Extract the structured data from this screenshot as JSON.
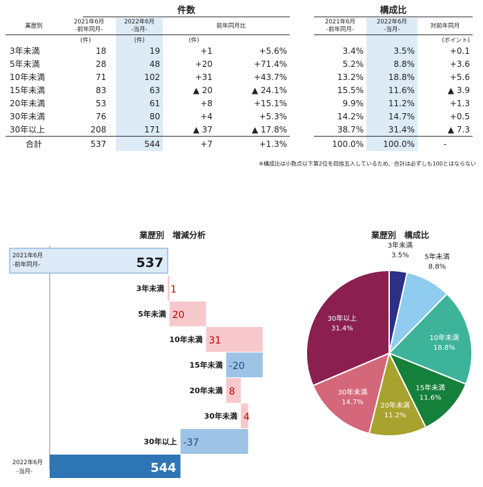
{
  "counts_table": {
    "group_title": "件数",
    "col_category": "業歴別",
    "col_prev": [
      "2021年6月",
      "-前年同月-"
    ],
    "col_curr": [
      "2022年6月",
      "-当月-"
    ],
    "col_yoy": "前年同月比",
    "units": [
      "(件)",
      "(件)",
      "(件)"
    ],
    "rows": [
      {
        "label": "3年未満",
        "prev": "18",
        "curr": "19",
        "diff": "+1",
        "pct": "+5.6%"
      },
      {
        "label": "5年未満",
        "prev": "28",
        "curr": "48",
        "diff": "+20",
        "pct": "+71.4%"
      },
      {
        "label": "10年未満",
        "prev": "71",
        "curr": "102",
        "diff": "+31",
        "pct": "+43.7%"
      },
      {
        "label": "15年未満",
        "prev": "83",
        "curr": "63",
        "diff": "▲ 20",
        "pct": "▲ 24.1%"
      },
      {
        "label": "20年未満",
        "prev": "53",
        "curr": "61",
        "diff": "+8",
        "pct": "+15.1%"
      },
      {
        "label": "30年未満",
        "prev": "76",
        "curr": "80",
        "diff": "+4",
        "pct": "+5.3%"
      },
      {
        "label": "30年以上",
        "prev": "208",
        "curr": "171",
        "diff": "▲ 37",
        "pct": "▲ 17.8%"
      }
    ],
    "total": {
      "label": "合計",
      "prev": "537",
      "curr": "544",
      "diff": "+7",
      "pct": "+1.3%"
    }
  },
  "ratio_table": {
    "group_title": "構成比",
    "col_prev": [
      "2021年6月",
      "-前年同月-"
    ],
    "col_curr": [
      "2022年6月",
      "-当月-"
    ],
    "col_diff": "対前年同月",
    "unit": "(ポイント)",
    "rows": [
      {
        "prev": "3.4%",
        "curr": "3.5%",
        "diff": "+0.1"
      },
      {
        "prev": "5.2%",
        "curr": "8.8%",
        "diff": "+3.6"
      },
      {
        "prev": "13.2%",
        "curr": "18.8%",
        "diff": "+5.6"
      },
      {
        "prev": "15.5%",
        "curr": "11.6%",
        "diff": "▲ 3.9"
      },
      {
        "prev": "9.9%",
        "curr": "11.2%",
        "diff": "+1.3"
      },
      {
        "prev": "14.2%",
        "curr": "14.7%",
        "diff": "+0.5"
      },
      {
        "prev": "38.7%",
        "curr": "31.4%",
        "diff": "▲ 7.3"
      }
    ],
    "total": {
      "prev": "100.0%",
      "curr": "100.0%",
      "diff": "-"
    }
  },
  "note": "※構成比は小数点以下第2位を四捨五入しているため、合計は必ずしも100とはならない",
  "chart_data": [
    {
      "type": "bar",
      "title": "業歴別　増減分析",
      "start": {
        "label_line1": "2021年6月",
        "label_line2": "-前年同月-",
        "value": 537
      },
      "end": {
        "label_line1": "2022年6月",
        "label_line2": "-当月-",
        "value": 544
      },
      "steps": [
        {
          "label": "3年未満",
          "value": 1,
          "text": "1"
        },
        {
          "label": "5年未満",
          "value": 20,
          "text": "20"
        },
        {
          "label": "10年未満",
          "value": 31,
          "text": "31"
        },
        {
          "label": "15年未満",
          "value": -20,
          "text": "-20"
        },
        {
          "label": "20年未満",
          "value": 8,
          "text": "8"
        },
        {
          "label": "30年未満",
          "value": 4,
          "text": "4"
        },
        {
          "label": "30年以上",
          "value": -37,
          "text": "-37"
        }
      ],
      "colors": {
        "start": "#ddeaf7",
        "end": "#2e75b6",
        "increase": "#f8c9cc",
        "decrease": "#9dc3e6",
        "increase_text": "#c00000",
        "decrease_text": "#1f4e79"
      }
    },
    {
      "type": "pie",
      "title": "業歴別　構成比",
      "slices": [
        {
          "label": "3年未満",
          "value": 3.5,
          "pct": "3.5%",
          "color": "#2e2f86"
        },
        {
          "label": "5年未満",
          "value": 8.8,
          "pct": "8.8%",
          "color": "#8fcbee"
        },
        {
          "label": "10年未満",
          "value": 18.8,
          "pct": "18.8%",
          "color": "#3db39a"
        },
        {
          "label": "15年未満",
          "value": 11.6,
          "pct": "11.6%",
          "color": "#15803a"
        },
        {
          "label": "20年未満",
          "value": 11.2,
          "pct": "11.2%",
          "color": "#a8a22e"
        },
        {
          "label": "30年未満",
          "value": 14.7,
          "pct": "14.7%",
          "color": "#d4677a"
        },
        {
          "label": "30年以上",
          "value": 31.4,
          "pct": "31.4%",
          "color": "#8a1f50"
        }
      ]
    }
  ]
}
